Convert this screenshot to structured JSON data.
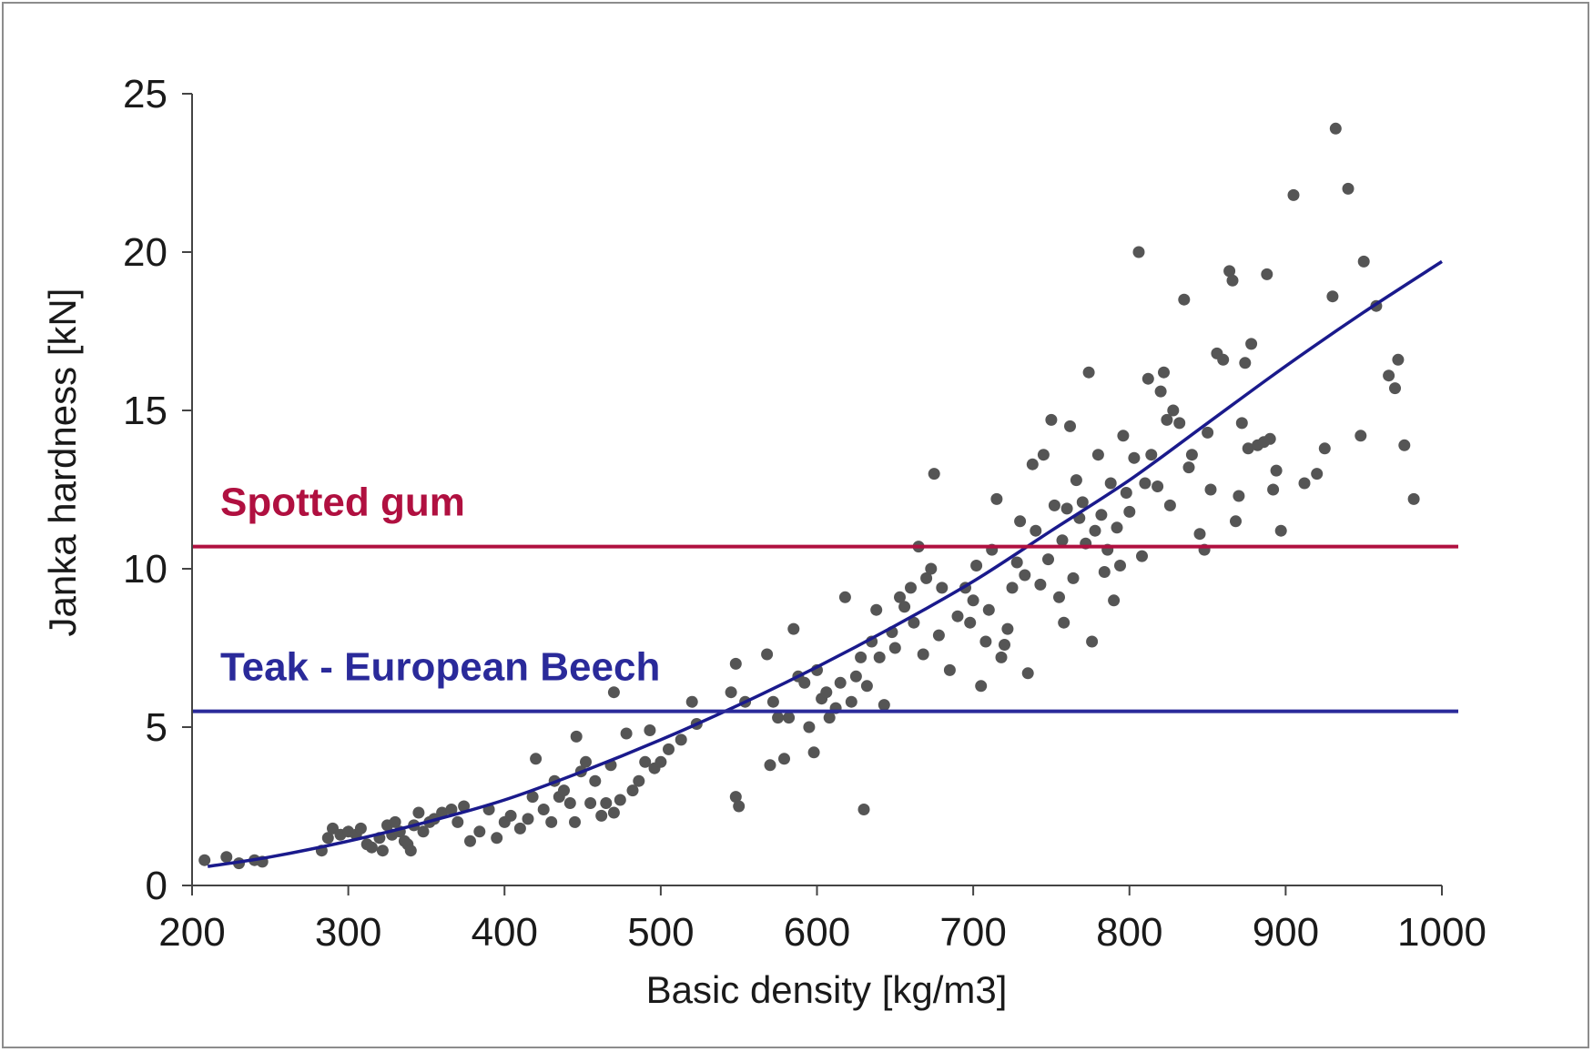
{
  "chart_data": {
    "type": "scatter",
    "title": "",
    "xlabel": "Basic density [kg/m3]",
    "ylabel": "Janka hardness [kN]",
    "xlim": [
      200,
      1000
    ],
    "ylim": [
      0,
      25
    ],
    "x_ticks": [
      "200",
      "300",
      "400",
      "500",
      "600",
      "700",
      "800",
      "900",
      "1000"
    ],
    "y_ticks": [
      "0",
      "5",
      "10",
      "15",
      "20",
      "25"
    ],
    "grid": false,
    "legend": "none",
    "colors": {
      "points": "#555555",
      "fit": "#1a1a8c",
      "spotted_gum": "#b01040",
      "teak_beech": "#2a2a9a",
      "axis": "#444444"
    },
    "reference_lines": [
      {
        "label": "Spotted gum",
        "y": 10.7,
        "color": "#b01040"
      },
      {
        "label": "Teak - European Beech",
        "y": 5.5,
        "color": "#2a2a9a"
      }
    ],
    "fit_curve": {
      "x": [
        210,
        250,
        300,
        350,
        400,
        450,
        500,
        550,
        600,
        650,
        700,
        750,
        800,
        850,
        900,
        950,
        1000
      ],
      "y": [
        0.6,
        0.9,
        1.4,
        2.0,
        2.7,
        3.6,
        4.6,
        5.7,
        6.9,
        8.2,
        9.6,
        11.2,
        12.8,
        14.6,
        16.4,
        18.1,
        19.7
      ]
    },
    "series": [
      {
        "points": [
          [
            208,
            0.8
          ],
          [
            222,
            0.9
          ],
          [
            230,
            0.7
          ],
          [
            240,
            0.8
          ],
          [
            245,
            0.75
          ],
          [
            283,
            1.1
          ],
          [
            287,
            1.5
          ],
          [
            290,
            1.8
          ],
          [
            295,
            1.6
          ],
          [
            300,
            1.7
          ],
          [
            305,
            1.6
          ],
          [
            308,
            1.8
          ],
          [
            312,
            1.3
          ],
          [
            315,
            1.2
          ],
          [
            320,
            1.5
          ],
          [
            322,
            1.1
          ],
          [
            325,
            1.9
          ],
          [
            328,
            1.6
          ],
          [
            330,
            2.0
          ],
          [
            333,
            1.7
          ],
          [
            336,
            1.4
          ],
          [
            338,
            1.3
          ],
          [
            340,
            1.1
          ],
          [
            342,
            1.9
          ],
          [
            345,
            2.3
          ],
          [
            348,
            1.7
          ],
          [
            352,
            2.0
          ],
          [
            355,
            2.1
          ],
          [
            360,
            2.3
          ],
          [
            366,
            2.4
          ],
          [
            370,
            2.0
          ],
          [
            374,
            2.5
          ],
          [
            378,
            1.4
          ],
          [
            384,
            1.7
          ],
          [
            390,
            2.4
          ],
          [
            395,
            1.5
          ],
          [
            400,
            2.0
          ],
          [
            404,
            2.2
          ],
          [
            410,
            1.8
          ],
          [
            415,
            2.1
          ],
          [
            418,
            2.8
          ],
          [
            420,
            4.0
          ],
          [
            425,
            2.4
          ],
          [
            430,
            2.0
          ],
          [
            432,
            3.3
          ],
          [
            435,
            2.8
          ],
          [
            438,
            3.0
          ],
          [
            442,
            2.6
          ],
          [
            445,
            2.0
          ],
          [
            446,
            4.7
          ],
          [
            449,
            3.6
          ],
          [
            452,
            3.9
          ],
          [
            455,
            2.6
          ],
          [
            458,
            3.3
          ],
          [
            462,
            2.2
          ],
          [
            465,
            2.6
          ],
          [
            468,
            3.8
          ],
          [
            470,
            2.3
          ],
          [
            470,
            6.1
          ],
          [
            474,
            2.7
          ],
          [
            478,
            4.8
          ],
          [
            482,
            3.0
          ],
          [
            486,
            3.3
          ],
          [
            490,
            3.9
          ],
          [
            493,
            4.9
          ],
          [
            496,
            3.7
          ],
          [
            500,
            3.9
          ],
          [
            505,
            4.3
          ],
          [
            513,
            4.6
          ],
          [
            520,
            5.8
          ],
          [
            523,
            5.1
          ],
          [
            545,
            6.1
          ],
          [
            548,
            7.0
          ],
          [
            548,
            2.8
          ],
          [
            550,
            2.5
          ],
          [
            554,
            5.8
          ],
          [
            568,
            7.3
          ],
          [
            570,
            3.8
          ],
          [
            572,
            5.8
          ],
          [
            575,
            5.3
          ],
          [
            579,
            4.0
          ],
          [
            582,
            5.3
          ],
          [
            585,
            8.1
          ],
          [
            588,
            6.6
          ],
          [
            592,
            6.4
          ],
          [
            595,
            5.0
          ],
          [
            598,
            4.2
          ],
          [
            600,
            6.8
          ],
          [
            603,
            5.9
          ],
          [
            606,
            6.1
          ],
          [
            608,
            5.3
          ],
          [
            612,
            5.6
          ],
          [
            615,
            6.4
          ],
          [
            618,
            9.1
          ],
          [
            622,
            5.8
          ],
          [
            625,
            6.6
          ],
          [
            628,
            7.2
          ],
          [
            630,
            2.4
          ],
          [
            632,
            6.3
          ],
          [
            635,
            7.7
          ],
          [
            638,
            8.7
          ],
          [
            640,
            7.2
          ],
          [
            643,
            5.7
          ],
          [
            648,
            8.0
          ],
          [
            650,
            7.5
          ],
          [
            653,
            9.1
          ],
          [
            656,
            8.8
          ],
          [
            660,
            9.4
          ],
          [
            662,
            8.3
          ],
          [
            665,
            10.7
          ],
          [
            668,
            7.3
          ],
          [
            670,
            9.7
          ],
          [
            673,
            10.0
          ],
          [
            675,
            13.0
          ],
          [
            678,
            7.9
          ],
          [
            680,
            9.4
          ],
          [
            685,
            6.8
          ],
          [
            690,
            8.5
          ],
          [
            695,
            9.4
          ],
          [
            698,
            8.3
          ],
          [
            700,
            9.0
          ],
          [
            702,
            10.1
          ],
          [
            705,
            6.3
          ],
          [
            708,
            7.7
          ],
          [
            710,
            8.7
          ],
          [
            712,
            10.6
          ],
          [
            715,
            12.2
          ],
          [
            718,
            7.2
          ],
          [
            720,
            7.6
          ],
          [
            722,
            8.1
          ],
          [
            725,
            9.4
          ],
          [
            728,
            10.2
          ],
          [
            730,
            11.5
          ],
          [
            733,
            9.8
          ],
          [
            735,
            6.7
          ],
          [
            738,
            13.3
          ],
          [
            740,
            11.2
          ],
          [
            743,
            9.5
          ],
          [
            745,
            13.6
          ],
          [
            748,
            10.3
          ],
          [
            750,
            14.7
          ],
          [
            752,
            12.0
          ],
          [
            755,
            9.1
          ],
          [
            757,
            10.9
          ],
          [
            758,
            8.3
          ],
          [
            760,
            11.9
          ],
          [
            762,
            14.5
          ],
          [
            764,
            9.7
          ],
          [
            766,
            12.8
          ],
          [
            768,
            11.6
          ],
          [
            770,
            12.1
          ],
          [
            772,
            10.8
          ],
          [
            774,
            16.2
          ],
          [
            776,
            7.7
          ],
          [
            778,
            11.2
          ],
          [
            780,
            13.6
          ],
          [
            782,
            11.7
          ],
          [
            784,
            9.9
          ],
          [
            786,
            10.6
          ],
          [
            788,
            12.7
          ],
          [
            790,
            9.0
          ],
          [
            792,
            11.3
          ],
          [
            794,
            10.1
          ],
          [
            796,
            14.2
          ],
          [
            798,
            12.4
          ],
          [
            800,
            11.8
          ],
          [
            803,
            13.5
          ],
          [
            806,
            20.0
          ],
          [
            808,
            10.4
          ],
          [
            810,
            12.7
          ],
          [
            812,
            16.0
          ],
          [
            814,
            13.6
          ],
          [
            818,
            12.6
          ],
          [
            820,
            15.6
          ],
          [
            822,
            16.2
          ],
          [
            824,
            14.7
          ],
          [
            826,
            12.0
          ],
          [
            828,
            15.0
          ],
          [
            832,
            14.6
          ],
          [
            835,
            18.5
          ],
          [
            838,
            13.2
          ],
          [
            840,
            13.6
          ],
          [
            845,
            11.1
          ],
          [
            848,
            10.6
          ],
          [
            850,
            14.3
          ],
          [
            852,
            12.5
          ],
          [
            856,
            16.8
          ],
          [
            860,
            16.6
          ],
          [
            864,
            19.4
          ],
          [
            866,
            19.1
          ],
          [
            868,
            11.5
          ],
          [
            870,
            12.3
          ],
          [
            872,
            14.6
          ],
          [
            874,
            16.5
          ],
          [
            876,
            13.8
          ],
          [
            878,
            17.1
          ],
          [
            882,
            13.9
          ],
          [
            886,
            14.0
          ],
          [
            888,
            19.3
          ],
          [
            890,
            14.1
          ],
          [
            892,
            12.5
          ],
          [
            894,
            13.1
          ],
          [
            897,
            11.2
          ],
          [
            905,
            21.8
          ],
          [
            912,
            12.7
          ],
          [
            920,
            13.0
          ],
          [
            925,
            13.8
          ],
          [
            930,
            18.6
          ],
          [
            932,
            23.9
          ],
          [
            940,
            22.0
          ],
          [
            948,
            14.2
          ],
          [
            950,
            19.7
          ],
          [
            958,
            18.3
          ],
          [
            966,
            16.1
          ],
          [
            970,
            15.7
          ],
          [
            972,
            16.6
          ],
          [
            976,
            13.9
          ],
          [
            982,
            12.2
          ]
        ]
      }
    ]
  }
}
